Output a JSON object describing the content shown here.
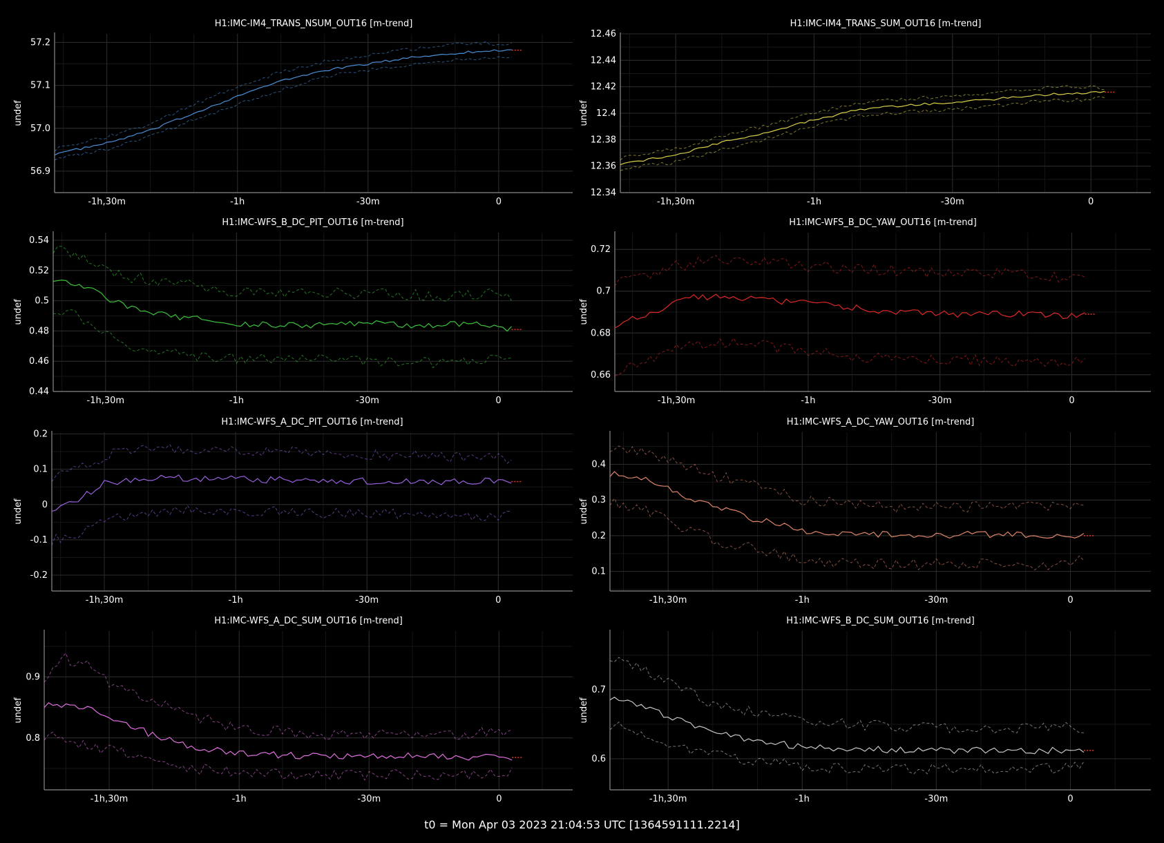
{
  "footer": "t0 = Mon Apr 03 2023 21:04:53 UTC [1364591111.2214]",
  "colors": {
    "background": "#000000",
    "grid_major": "#2c2c2c",
    "grid_minor": "#161616",
    "axis": "#8a8a8a",
    "text": "#ffffff",
    "trailing_marker": "#e8352c"
  },
  "chart_data": [
    {
      "type": "line",
      "title": "H1:IMC-IM4_TRANS_NSUM_OUT16 [m-trend]",
      "ylabel": "undef",
      "x_tick_labels": [
        "-1h,30m",
        "-1h",
        "-30m",
        "0"
      ],
      "x_tick_minutes": [
        -90,
        -60,
        -30,
        0
      ],
      "xlim_minutes": [
        -102,
        17
      ],
      "ylim": [
        56.85,
        57.22
      ],
      "y_ticks": [
        56.9,
        57.0,
        57.1,
        57.2
      ],
      "y_tick_labels": [
        "56.9",
        "57.0",
        "57.1",
        "57.2"
      ],
      "color": "#4a90d9",
      "series": [
        {
          "role": "mean",
          "x_min": [
            -102,
            -90,
            -80,
            -70,
            -60,
            -50,
            -40,
            -30,
            -20,
            -10,
            -3,
            3
          ],
          "y": [
            56.94,
            56.965,
            56.995,
            57.035,
            57.075,
            57.11,
            57.135,
            57.15,
            57.165,
            57.175,
            57.18,
            57.182
          ]
        },
        {
          "role": "max",
          "x_min": [
            -102,
            -90,
            -80,
            -70,
            -60,
            -50,
            -40,
            -30,
            -20,
            -10,
            -3,
            3
          ],
          "y": [
            56.95,
            56.98,
            57.01,
            57.055,
            57.095,
            57.13,
            57.155,
            57.17,
            57.185,
            57.195,
            57.198,
            57.195
          ]
        },
        {
          "role": "min",
          "x_min": [
            -102,
            -90,
            -80,
            -70,
            -60,
            -50,
            -40,
            -30,
            -20,
            -10,
            -3,
            3
          ],
          "y": [
            56.93,
            56.95,
            56.98,
            57.02,
            57.055,
            57.09,
            57.12,
            57.135,
            57.15,
            57.16,
            57.165,
            57.168
          ]
        }
      ]
    },
    {
      "type": "line",
      "title": "H1:IMC-IM4_TRANS_SUM_OUT16 [m-trend]",
      "ylabel": "undef",
      "x_tick_labels": [
        "-1h,30m",
        "-1h",
        "-30m",
        "0"
      ],
      "x_tick_minutes": [
        -90,
        -60,
        -30,
        0
      ],
      "xlim_minutes": [
        -102,
        13
      ],
      "ylim": [
        12.34,
        12.46
      ],
      "y_ticks": [
        12.34,
        12.36,
        12.38,
        12.4,
        12.42,
        12.44,
        12.46
      ],
      "y_tick_labels": [
        "12.34",
        "12.36",
        "12.38",
        "12.4",
        "12.42",
        "12.44",
        "12.46"
      ],
      "color": "#d8d048",
      "series": [
        {
          "role": "mean",
          "x_min": [
            -102,
            -90,
            -80,
            -70,
            -60,
            -50,
            -40,
            -30,
            -20,
            -10,
            -3,
            3
          ],
          "y": [
            12.362,
            12.368,
            12.378,
            12.386,
            12.395,
            12.403,
            12.406,
            12.408,
            12.411,
            12.414,
            12.415,
            12.416
          ]
        },
        {
          "role": "max",
          "x_min": [
            -102,
            -90,
            -80,
            -70,
            -60,
            -50,
            -40,
            -30,
            -20,
            -10,
            -3,
            3
          ],
          "y": [
            12.366,
            12.373,
            12.383,
            12.391,
            12.4,
            12.408,
            12.411,
            12.413,
            12.416,
            12.419,
            12.42,
            12.419
          ]
        },
        {
          "role": "min",
          "x_min": [
            -102,
            -90,
            -80,
            -70,
            -60,
            -50,
            -40,
            -30,
            -20,
            -10,
            -3,
            3
          ],
          "y": [
            12.358,
            12.363,
            12.373,
            12.381,
            12.39,
            12.398,
            12.401,
            12.403,
            12.406,
            12.409,
            12.41,
            12.412
          ]
        }
      ]
    },
    {
      "type": "line",
      "title": "H1:IMC-WFS_B_DC_PIT_OUT16 [m-trend]",
      "ylabel": "undef",
      "x_tick_labels": [
        "-1h,30m",
        "-1h",
        "-30m",
        "0"
      ],
      "x_tick_minutes": [
        -90,
        -60,
        -30,
        0
      ],
      "xlim_minutes": [
        -102,
        17
      ],
      "ylim": [
        0.44,
        0.545
      ],
      "y_ticks": [
        0.44,
        0.46,
        0.48,
        0.5,
        0.52,
        0.54
      ],
      "y_tick_labels": [
        "0.44",
        "0.46",
        "0.48",
        "0.5",
        "0.52",
        "0.54"
      ],
      "color": "#3cc43c",
      "series": [
        {
          "role": "mean",
          "x_min": [
            -102,
            -95,
            -90,
            -85,
            -80,
            -70,
            -60,
            -50,
            -40,
            -30,
            -20,
            -10,
            -3,
            3
          ],
          "y": [
            0.515,
            0.51,
            0.502,
            0.496,
            0.492,
            0.488,
            0.485,
            0.484,
            0.484,
            0.485,
            0.484,
            0.484,
            0.485,
            0.481
          ]
        },
        {
          "role": "max",
          "x_min": [
            -102,
            -95,
            -90,
            -85,
            -80,
            -70,
            -60,
            -50,
            -40,
            -30,
            -20,
            -10,
            -3,
            3
          ],
          "y": [
            0.535,
            0.53,
            0.522,
            0.516,
            0.514,
            0.51,
            0.506,
            0.504,
            0.505,
            0.505,
            0.504,
            0.503,
            0.505,
            0.502
          ]
        },
        {
          "role": "min",
          "x_min": [
            -102,
            -95,
            -90,
            -85,
            -80,
            -70,
            -60,
            -50,
            -40,
            -30,
            -20,
            -10,
            -3,
            3
          ],
          "y": [
            0.495,
            0.488,
            0.478,
            0.47,
            0.466,
            0.464,
            0.462,
            0.462,
            0.461,
            0.461,
            0.459,
            0.459,
            0.461,
            0.462
          ]
        }
      ]
    },
    {
      "type": "line",
      "title": "H1:IMC-WFS_B_DC_YAW_OUT16 [m-trend]",
      "ylabel": "undef",
      "x_tick_labels": [
        "-1h,30m",
        "-1h",
        "-30m",
        "0"
      ],
      "x_tick_minutes": [
        -90,
        -60,
        -30,
        0
      ],
      "xlim_minutes": [
        -104,
        18
      ],
      "ylim": [
        0.652,
        0.728
      ],
      "y_ticks": [
        0.66,
        0.68,
        0.7,
        0.72
      ],
      "y_tick_labels": [
        "0.66",
        "0.68",
        "0.7",
        "0.72"
      ],
      "color": "#e02828",
      "series": [
        {
          "role": "mean",
          "x_min": [
            -104,
            -95,
            -90,
            -80,
            -70,
            -60,
            -50,
            -40,
            -30,
            -20,
            -10,
            -3,
            3
          ],
          "y": [
            0.684,
            0.69,
            0.696,
            0.698,
            0.696,
            0.694,
            0.692,
            0.69,
            0.689,
            0.689,
            0.689,
            0.688,
            0.689
          ]
        },
        {
          "role": "max",
          "x_min": [
            -104,
            -95,
            -90,
            -80,
            -70,
            -60,
            -50,
            -40,
            -30,
            -20,
            -10,
            -3,
            3
          ],
          "y": [
            0.705,
            0.708,
            0.712,
            0.715,
            0.714,
            0.712,
            0.711,
            0.71,
            0.709,
            0.709,
            0.708,
            0.707,
            0.709
          ]
        },
        {
          "role": "min",
          "x_min": [
            -104,
            -95,
            -90,
            -80,
            -70,
            -60,
            -50,
            -40,
            -30,
            -20,
            -10,
            -3,
            3
          ],
          "y": [
            0.662,
            0.669,
            0.674,
            0.676,
            0.674,
            0.671,
            0.669,
            0.667,
            0.667,
            0.667,
            0.666,
            0.666,
            0.668
          ]
        }
      ]
    },
    {
      "type": "line",
      "title": "H1:IMC-WFS_A_DC_PIT_OUT16 [m-trend]",
      "ylabel": "undef",
      "x_tick_labels": [
        "-1h,30m",
        "-1h",
        "-30m",
        "0"
      ],
      "x_tick_minutes": [
        -90,
        -60,
        -30,
        0
      ],
      "xlim_minutes": [
        -102,
        17
      ],
      "ylim": [
        -0.245,
        0.205
      ],
      "y_ticks": [
        -0.2,
        -0.1,
        0,
        0.1,
        0.2
      ],
      "y_tick_labels": [
        "-0.2",
        "-0.1",
        "0",
        "0.1",
        "0.2"
      ],
      "color": "#9a62e0",
      "series": [
        {
          "role": "mean",
          "x_min": [
            -102,
            -97,
            -92,
            -90,
            -80,
            -70,
            -60,
            -50,
            -40,
            -30,
            -20,
            -10,
            -3,
            3
          ],
          "y": [
            -0.01,
            0.01,
            0.045,
            0.06,
            0.075,
            0.075,
            0.072,
            0.07,
            0.068,
            0.066,
            0.065,
            0.064,
            0.068,
            0.065
          ]
        },
        {
          "role": "max",
          "x_min": [
            -102,
            -97,
            -92,
            -90,
            -80,
            -70,
            -60,
            -50,
            -40,
            -30,
            -20,
            -10,
            -3,
            3
          ],
          "y": [
            0.08,
            0.1,
            0.12,
            0.14,
            0.155,
            0.16,
            0.155,
            0.15,
            0.145,
            0.14,
            0.14,
            0.135,
            0.14,
            0.125
          ]
        },
        {
          "role": "min",
          "x_min": [
            -102,
            -97,
            -92,
            -90,
            -80,
            -70,
            -60,
            -50,
            -40,
            -30,
            -20,
            -10,
            -3,
            3
          ],
          "y": [
            -0.1,
            -0.085,
            -0.06,
            -0.04,
            -0.02,
            -0.01,
            -0.015,
            -0.02,
            -0.025,
            -0.025,
            -0.03,
            -0.035,
            -0.03,
            -0.03
          ]
        }
      ]
    },
    {
      "type": "line",
      "title": "H1:IMC-WFS_A_DC_YAW_OUT16 [m-trend]",
      "ylabel": "undef",
      "x_tick_labels": [
        "-1h,30m",
        "-1h",
        "-30m",
        "0"
      ],
      "x_tick_minutes": [
        -90,
        -60,
        -30,
        0
      ],
      "xlim_minutes": [
        -103,
        18
      ],
      "ylim": [
        0.045,
        0.49
      ],
      "y_ticks": [
        0.1,
        0.2,
        0.3,
        0.4
      ],
      "y_tick_labels": [
        "0.1",
        "0.2",
        "0.3",
        "0.4"
      ],
      "color": "#e0866a",
      "series": [
        {
          "role": "mean",
          "x_min": [
            -103,
            -95,
            -90,
            -80,
            -70,
            -60,
            -50,
            -40,
            -30,
            -20,
            -10,
            -3,
            3
          ],
          "y": [
            0.375,
            0.355,
            0.33,
            0.28,
            0.245,
            0.215,
            0.205,
            0.205,
            0.2,
            0.205,
            0.2,
            0.2,
            0.2
          ]
        },
        {
          "role": "max",
          "x_min": [
            -103,
            -95,
            -90,
            -80,
            -70,
            -60,
            -50,
            -40,
            -30,
            -20,
            -10,
            -3,
            3
          ],
          "y": [
            0.45,
            0.43,
            0.41,
            0.37,
            0.34,
            0.3,
            0.29,
            0.28,
            0.28,
            0.28,
            0.28,
            0.285,
            0.28
          ]
        },
        {
          "role": "min",
          "x_min": [
            -103,
            -95,
            -90,
            -80,
            -70,
            -60,
            -50,
            -40,
            -30,
            -20,
            -10,
            -3,
            3
          ],
          "y": [
            0.3,
            0.27,
            0.24,
            0.19,
            0.16,
            0.13,
            0.12,
            0.12,
            0.12,
            0.12,
            0.115,
            0.12,
            0.13
          ]
        }
      ]
    },
    {
      "type": "line",
      "title": "H1:IMC-WFS_A_DC_SUM_OUT16 [m-trend]",
      "ylabel": "undef",
      "x_tick_labels": [
        "-1h,30m",
        "-1h",
        "-30m",
        "0"
      ],
      "x_tick_minutes": [
        -90,
        -60,
        -30,
        0
      ],
      "xlim_minutes": [
        -105,
        17
      ],
      "ylim": [
        0.715,
        0.975
      ],
      "y_ticks": [
        0.8,
        0.9
      ],
      "y_tick_labels": [
        "0.8",
        "0.9"
      ],
      "color": "#e070e0",
      "series": [
        {
          "role": "mean",
          "x_min": [
            -105,
            -100,
            -95,
            -90,
            -80,
            -70,
            -60,
            -50,
            -40,
            -30,
            -20,
            -10,
            -3,
            3
          ],
          "y": [
            0.855,
            0.855,
            0.85,
            0.835,
            0.805,
            0.785,
            0.775,
            0.772,
            0.77,
            0.77,
            0.77,
            0.768,
            0.768,
            0.768
          ]
        },
        {
          "role": "max",
          "x_min": [
            -105,
            -100,
            -95,
            -90,
            -80,
            -70,
            -60,
            -50,
            -40,
            -30,
            -20,
            -10,
            -3,
            3
          ],
          "y": [
            0.9,
            0.93,
            0.92,
            0.89,
            0.86,
            0.835,
            0.815,
            0.81,
            0.805,
            0.805,
            0.805,
            0.805,
            0.81,
            0.805
          ]
        },
        {
          "role": "min",
          "x_min": [
            -105,
            -100,
            -95,
            -90,
            -80,
            -70,
            -60,
            -50,
            -40,
            -30,
            -20,
            -10,
            -3,
            3
          ],
          "y": [
            0.805,
            0.795,
            0.79,
            0.78,
            0.765,
            0.75,
            0.742,
            0.74,
            0.74,
            0.74,
            0.74,
            0.74,
            0.742,
            0.745
          ]
        }
      ]
    },
    {
      "type": "line",
      "title": "H1:IMC-WFS_B_DC_SUM_OUT16 [m-trend]",
      "ylabel": "undef",
      "x_tick_labels": [
        "-1h,30m",
        "-1h",
        "-30m",
        "0"
      ],
      "x_tick_minutes": [
        -90,
        -60,
        -30,
        0
      ],
      "xlim_minutes": [
        -103,
        18
      ],
      "ylim": [
        0.555,
        0.785
      ],
      "y_ticks": [
        0.6,
        0.7
      ],
      "y_tick_labels": [
        "0.6",
        "0.7"
      ],
      "color": "#c8c8c8",
      "series": [
        {
          "role": "mean",
          "x_min": [
            -103,
            -95,
            -90,
            -80,
            -70,
            -60,
            -50,
            -40,
            -30,
            -20,
            -10,
            -3,
            3
          ],
          "y": [
            0.69,
            0.675,
            0.66,
            0.64,
            0.625,
            0.618,
            0.615,
            0.613,
            0.612,
            0.612,
            0.611,
            0.612,
            0.612
          ]
        },
        {
          "role": "max",
          "x_min": [
            -103,
            -95,
            -90,
            -80,
            -70,
            -60,
            -50,
            -40,
            -30,
            -20,
            -10,
            -3,
            3
          ],
          "y": [
            0.75,
            0.73,
            0.71,
            0.68,
            0.665,
            0.655,
            0.65,
            0.648,
            0.645,
            0.645,
            0.645,
            0.65,
            0.645
          ]
        },
        {
          "role": "min",
          "x_min": [
            -103,
            -95,
            -90,
            -80,
            -70,
            -60,
            -50,
            -40,
            -30,
            -20,
            -10,
            -3,
            3
          ],
          "y": [
            0.65,
            0.635,
            0.62,
            0.605,
            0.595,
            0.59,
            0.585,
            0.585,
            0.585,
            0.585,
            0.585,
            0.585,
            0.59
          ]
        }
      ]
    }
  ]
}
